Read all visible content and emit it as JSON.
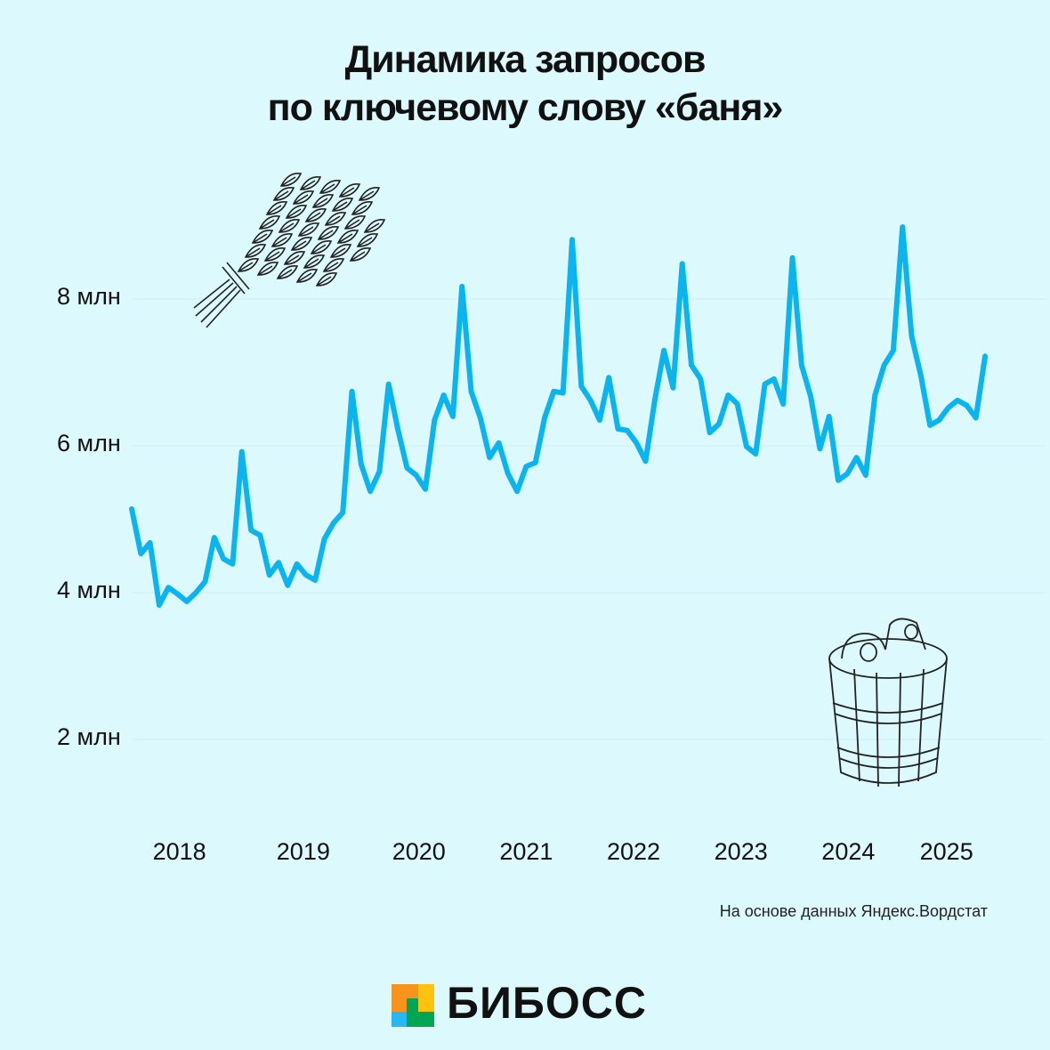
{
  "title": {
    "line1": "Динамика запросов",
    "line2": "по ключевому слову «баня»"
  },
  "source": "На основе данных Яндекс.Вордстат",
  "brand": {
    "name": "БИБОСС",
    "colors": {
      "orange": "#f7941d",
      "yellow": "#ffc20e",
      "green": "#00a651",
      "blue": "#29b6f6"
    }
  },
  "chart_data": {
    "type": "line",
    "title": "Динамика запросов по ключевому слову «баня»",
    "ylabel": "",
    "xlabel": "",
    "y_ticks": [
      {
        "value": 2,
        "label": "2 млн"
      },
      {
        "value": 4,
        "label": "4 млн"
      },
      {
        "value": 6,
        "label": "6 млн"
      },
      {
        "value": 8,
        "label": "8 млн"
      }
    ],
    "x_ticks": [
      {
        "index": 5.2,
        "label": "2018"
      },
      {
        "index": 18.7,
        "label": "2019"
      },
      {
        "index": 31.3,
        "label": "2020"
      },
      {
        "index": 43,
        "label": "2021"
      },
      {
        "index": 54.7,
        "label": "2022"
      },
      {
        "index": 66.4,
        "label": "2023"
      },
      {
        "index": 78.1,
        "label": "2024"
      },
      {
        "index": 88.8,
        "label": "2025"
      }
    ],
    "grid": true,
    "line_color": "#0ab4ee",
    "values": [
      5.14,
      4.53,
      4.68,
      3.83,
      4.07,
      3.98,
      3.88,
      4.0,
      4.15,
      4.75,
      4.46,
      4.39,
      5.92,
      4.85,
      4.78,
      4.24,
      4.41,
      4.1,
      4.39,
      4.24,
      4.17,
      4.73,
      4.95,
      5.09,
      6.74,
      5.75,
      5.38,
      5.65,
      6.84,
      6.23,
      5.7,
      5.6,
      5.41,
      6.35,
      6.69,
      6.4,
      8.17,
      6.74,
      6.38,
      5.84,
      6.04,
      5.62,
      5.38,
      5.72,
      5.77,
      6.38,
      6.74,
      6.72,
      8.81,
      6.81,
      6.62,
      6.35,
      6.93,
      6.23,
      6.21,
      6.04,
      5.79,
      6.62,
      7.3,
      6.79,
      8.48,
      7.1,
      6.91,
      6.18,
      6.3,
      6.69,
      6.57,
      5.99,
      5.89,
      6.84,
      6.91,
      6.57,
      8.56,
      7.1,
      6.67,
      5.96,
      6.4,
      5.53,
      5.62,
      5.84,
      5.6,
      6.69,
      7.1,
      7.3,
      8.98,
      7.49,
      6.96,
      6.28,
      6.35,
      6.52,
      6.62,
      6.55,
      6.38,
      7.22
    ]
  }
}
